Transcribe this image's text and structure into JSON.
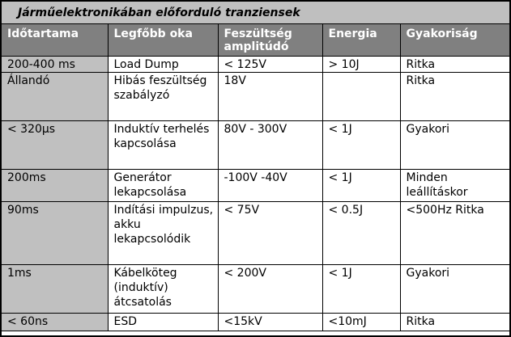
{
  "title": "Járműelektronikában előforduló tranziensek",
  "headers": [
    "Időtartama",
    "Legfőbb oka",
    "Feszültség amplitúdó",
    "Energia",
    "Gyakoriság"
  ],
  "rows": [
    {
      "duration": "200-400 ms",
      "cause": "Load Dump",
      "voltage": "< 125V",
      "energy": "> 10J",
      "frequency": "Ritka"
    },
    {
      "duration": "Állandó",
      "cause": "Hibás feszültség szabályzó",
      "voltage": "18V",
      "energy": "",
      "frequency": "Ritka"
    },
    {
      "duration": "< 320µs",
      "cause": "Induktív terhelés kapcsolása",
      "voltage": "80V - 300V",
      "energy": "< 1J",
      "frequency": "Gyakori"
    },
    {
      "duration": "200ms",
      "cause": "Generátor lekapcsolása",
      "voltage": "-100V -40V",
      "energy": "< 1J",
      "frequency": "Minden leállításkor"
    },
    {
      "duration": "90ms",
      "cause": "Indítási impulzus, akku lekapcsolódik",
      "voltage": "< 75V",
      "energy": "< 0.5J",
      "frequency": "<500Hz Ritka"
    },
    {
      "duration": "1ms",
      "cause": "Kábelköteg (induktív) átcsatolás",
      "voltage": "< 200V",
      "energy": "< 1J",
      "frequency": "Gyakori"
    },
    {
      "duration": "< 60ns",
      "cause": "ESD",
      "voltage": "<15kV",
      "energy": "<10mJ",
      "frequency": "Ritka"
    }
  ]
}
